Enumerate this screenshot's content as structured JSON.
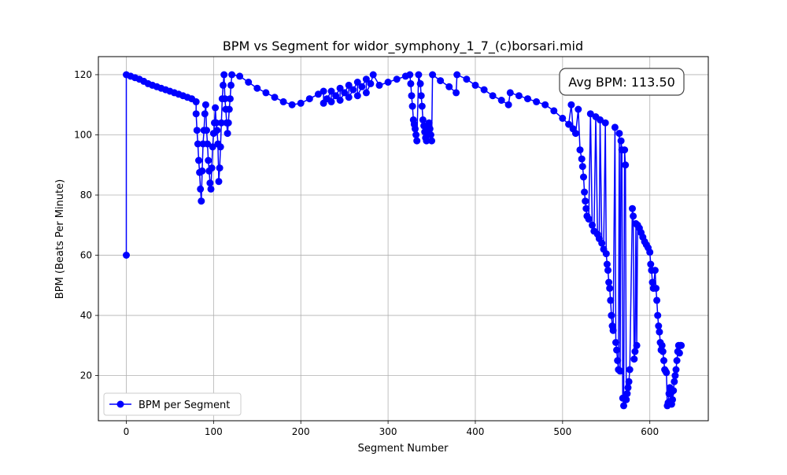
{
  "chart_data": {
    "type": "line",
    "title": "BPM vs Segment for widor_symphony_1_7_(c)borsari.mid",
    "xlabel": "Segment Number",
    "ylabel": "BPM (Beats Per Minute)",
    "xlim": [
      -32,
      667
    ],
    "ylim": [
      5,
      126
    ],
    "xticks": [
      0,
      100,
      200,
      300,
      400,
      500,
      600
    ],
    "yticks": [
      20,
      40,
      60,
      80,
      100,
      120
    ],
    "grid": true,
    "legend_position": "lower-left",
    "annotation": "Avg BPM: 113.50",
    "series": [
      {
        "name": "BPM per Segment",
        "color": "#0000ff",
        "marker": "circle",
        "points": [
          [
            0,
            60
          ],
          [
            0,
            120
          ],
          [
            5,
            119.5
          ],
          [
            10,
            119
          ],
          [
            15,
            118.5
          ],
          [
            20,
            117.8
          ],
          [
            25,
            117
          ],
          [
            30,
            116.5
          ],
          [
            35,
            116
          ],
          [
            40,
            115.5
          ],
          [
            45,
            115
          ],
          [
            50,
            114.5
          ],
          [
            55,
            114
          ],
          [
            60,
            113.5
          ],
          [
            65,
            113
          ],
          [
            70,
            112.5
          ],
          [
            75,
            112
          ],
          [
            80,
            111
          ],
          [
            80,
            107
          ],
          [
            81,
            101.5
          ],
          [
            82,
            97
          ],
          [
            83,
            91.5
          ],
          [
            84,
            87.5
          ],
          [
            85,
            82
          ],
          [
            86,
            78
          ],
          [
            87,
            88
          ],
          [
            88,
            97
          ],
          [
            89,
            101.5
          ],
          [
            90,
            107
          ],
          [
            91,
            110
          ],
          [
            92,
            101.5
          ],
          [
            93,
            97
          ],
          [
            94,
            91.5
          ],
          [
            95,
            88
          ],
          [
            96,
            84
          ],
          [
            97,
            82
          ],
          [
            98,
            89
          ],
          [
            99,
            96
          ],
          [
            100,
            100.5
          ],
          [
            101,
            104
          ],
          [
            102,
            109
          ],
          [
            103,
            104
          ],
          [
            104,
            101.5
          ],
          [
            105,
            97
          ],
          [
            106,
            84.5
          ],
          [
            107,
            89
          ],
          [
            108,
            96
          ],
          [
            109,
            104
          ],
          [
            110,
            112
          ],
          [
            111,
            116.5
          ],
          [
            112,
            120
          ],
          [
            113,
            112
          ],
          [
            114,
            108.5
          ],
          [
            115,
            104
          ],
          [
            116,
            100.5
          ],
          [
            117,
            104
          ],
          [
            118,
            108.5
          ],
          [
            119,
            112
          ],
          [
            120,
            116.5
          ],
          [
            121,
            120
          ],
          [
            130,
            119.5
          ],
          [
            140,
            117.5
          ],
          [
            150,
            115.5
          ],
          [
            160,
            114
          ],
          [
            170,
            112.5
          ],
          [
            180,
            111
          ],
          [
            190,
            110
          ],
          [
            200,
            110.5
          ],
          [
            210,
            112
          ],
          [
            220,
            113.5
          ],
          [
            226,
            114.5
          ],
          [
            226,
            110.5
          ],
          [
            230,
            112
          ],
          [
            235,
            114.5
          ],
          [
            235,
            111
          ],
          [
            240,
            113
          ],
          [
            245,
            115.5
          ],
          [
            245,
            111.5
          ],
          [
            250,
            114
          ],
          [
            255,
            116.5
          ],
          [
            255,
            112.5
          ],
          [
            260,
            115
          ],
          [
            265,
            117.5
          ],
          [
            265,
            113
          ],
          [
            270,
            116
          ],
          [
            275,
            118.5
          ],
          [
            275,
            114
          ],
          [
            280,
            117
          ],
          [
            283,
            120
          ],
          [
            290,
            116.5
          ],
          [
            300,
            117.5
          ],
          [
            310,
            118.5
          ],
          [
            320,
            119.5
          ],
          [
            325,
            120
          ],
          [
            326,
            117
          ],
          [
            327,
            113
          ],
          [
            328,
            109.5
          ],
          [
            329,
            105
          ],
          [
            330,
            103.5
          ],
          [
            331,
            102
          ],
          [
            332,
            100
          ],
          [
            333,
            98
          ],
          [
            335,
            120
          ],
          [
            337,
            117
          ],
          [
            338,
            113
          ],
          [
            339,
            109.5
          ],
          [
            340,
            105
          ],
          [
            341,
            103
          ],
          [
            342,
            101
          ],
          [
            343,
            99
          ],
          [
            344,
            98
          ],
          [
            345,
            100
          ],
          [
            346,
            102
          ],
          [
            347,
            104
          ],
          [
            348,
            102
          ],
          [
            349,
            100
          ],
          [
            350,
            98
          ],
          [
            351,
            120
          ],
          [
            360,
            118
          ],
          [
            370,
            116
          ],
          [
            378,
            114
          ],
          [
            379,
            120
          ],
          [
            390,
            118.5
          ],
          [
            400,
            116.5
          ],
          [
            410,
            115
          ],
          [
            420,
            113
          ],
          [
            430,
            111.5
          ],
          [
            438,
            110
          ],
          [
            440,
            114
          ],
          [
            450,
            113
          ],
          [
            460,
            112
          ],
          [
            470,
            111
          ],
          [
            480,
            110
          ],
          [
            490,
            108
          ],
          [
            500,
            105.5
          ],
          [
            507,
            103.5
          ],
          [
            510,
            110
          ],
          [
            512,
            102
          ],
          [
            515,
            100.5
          ],
          [
            518,
            108.5
          ],
          [
            520,
            95
          ],
          [
            522,
            92
          ],
          [
            523,
            89.5
          ],
          [
            524,
            86
          ],
          [
            525,
            81
          ],
          [
            526,
            78
          ],
          [
            527,
            75.5
          ],
          [
            528,
            73
          ],
          [
            530,
            72
          ],
          [
            532,
            107
          ],
          [
            534,
            70
          ],
          [
            536,
            68
          ],
          [
            538,
            106
          ],
          [
            540,
            67
          ],
          [
            542,
            65.5
          ],
          [
            543,
            105
          ],
          [
            545,
            64
          ],
          [
            547,
            62
          ],
          [
            549,
            104
          ],
          [
            550,
            60.5
          ],
          [
            551,
            57
          ],
          [
            552,
            55
          ],
          [
            553,
            51
          ],
          [
            554,
            49
          ],
          [
            555,
            45
          ],
          [
            556,
            40
          ],
          [
            557,
            36.5
          ],
          [
            558,
            35
          ],
          [
            560,
            102.5
          ],
          [
            561,
            31
          ],
          [
            562,
            28.5
          ],
          [
            563,
            25
          ],
          [
            564,
            22
          ],
          [
            565,
            100.5
          ],
          [
            566,
            21.5
          ],
          [
            567,
            98
          ],
          [
            568,
            95
          ],
          [
            569,
            12.5
          ],
          [
            570,
            10
          ],
          [
            571,
            95
          ],
          [
            572,
            90
          ],
          [
            573,
            12
          ],
          [
            574,
            14
          ],
          [
            575,
            16
          ],
          [
            576,
            18
          ],
          [
            577,
            22
          ],
          [
            580,
            75.5
          ],
          [
            581,
            73
          ],
          [
            582,
            25.5
          ],
          [
            583,
            28
          ],
          [
            584,
            70.5
          ],
          [
            585,
            30
          ],
          [
            586,
            70
          ],
          [
            588,
            69
          ],
          [
            590,
            67.5
          ],
          [
            592,
            66
          ],
          [
            594,
            64.5
          ],
          [
            596,
            63.5
          ],
          [
            598,
            62.5
          ],
          [
            600,
            61
          ],
          [
            601,
            57
          ],
          [
            602,
            55
          ],
          [
            603,
            51
          ],
          [
            604,
            49
          ],
          [
            606,
            55
          ],
          [
            607,
            49
          ],
          [
            608,
            45
          ],
          [
            609,
            40
          ],
          [
            610,
            36.5
          ],
          [
            611,
            34.5
          ],
          [
            612,
            31
          ],
          [
            613,
            28.5
          ],
          [
            614,
            30
          ],
          [
            615,
            28
          ],
          [
            616,
            25
          ],
          [
            617,
            22
          ],
          [
            618,
            21.5
          ],
          [
            619,
            21
          ],
          [
            620,
            10
          ],
          [
            621,
            11
          ],
          [
            622,
            14
          ],
          [
            623,
            16
          ],
          [
            624,
            14
          ],
          [
            625,
            10.5
          ],
          [
            626,
            12
          ],
          [
            627,
            15
          ],
          [
            628,
            18
          ],
          [
            629,
            20
          ],
          [
            630,
            22
          ],
          [
            631,
            25
          ],
          [
            632,
            28
          ],
          [
            633,
            30
          ],
          [
            634,
            27.5
          ],
          [
            635,
            30
          ],
          [
            636,
            30
          ]
        ]
      }
    ]
  }
}
